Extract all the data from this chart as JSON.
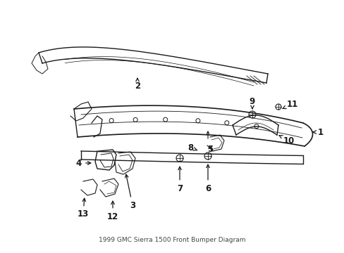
{
  "title": "1999 GMC Sierra 1500 Front Bumper Diagram",
  "bg_color": "#ffffff",
  "line_color": "#1a1a1a",
  "fig_w": 4.89,
  "fig_h": 3.6,
  "dpi": 100
}
